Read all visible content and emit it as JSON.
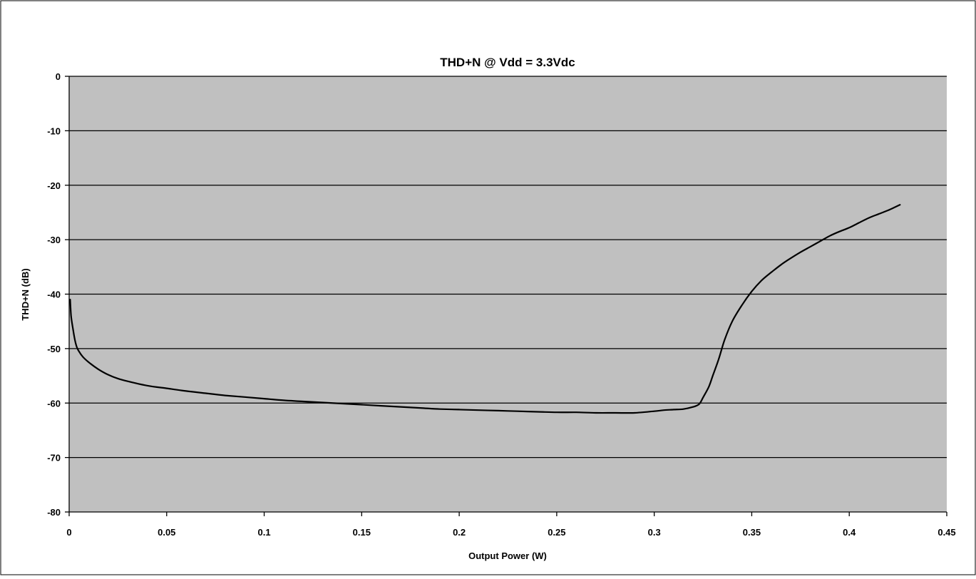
{
  "chart_data": {
    "type": "line",
    "title": "THD+N @ Vdd = 3.3Vdc",
    "xlabel": "Output Power (W)",
    "ylabel": "THD+N (dB)",
    "xlim": [
      0,
      0.45
    ],
    "ylim": [
      -80,
      0
    ],
    "xticks": [
      0,
      0.05,
      0.1,
      0.15,
      0.2,
      0.25,
      0.3,
      0.35,
      0.4,
      0.45
    ],
    "xtick_labels": [
      "0",
      "0.05",
      "0.1",
      "0.15",
      "0.2",
      "0.25",
      "0.3",
      "0.35",
      "0.4",
      "0.45"
    ],
    "yticks": [
      0,
      -10,
      -20,
      -30,
      -40,
      -50,
      -60,
      -70,
      -80
    ],
    "ytick_labels": [
      "0",
      "-10",
      "-20",
      "-30",
      "-40",
      "-50",
      "-60",
      "-70",
      "-80"
    ],
    "grid": "horizontal",
    "legend": "none",
    "colors": {
      "plot_background": "#c0c0c0",
      "line": "#000000",
      "gridline": "#000000",
      "frame_border": "#000000"
    },
    "series": [
      {
        "x": [
          0.0005,
          0.001,
          0.002,
          0.003,
          0.004,
          0.005,
          0.007,
          0.01,
          0.015,
          0.02,
          0.025,
          0.03,
          0.04,
          0.05,
          0.06,
          0.07,
          0.08,
          0.09,
          0.1,
          0.11,
          0.12,
          0.13,
          0.14,
          0.15,
          0.16,
          0.17,
          0.18,
          0.19,
          0.2,
          0.21,
          0.22,
          0.23,
          0.24,
          0.25,
          0.26,
          0.27,
          0.28,
          0.29,
          0.3,
          0.305,
          0.31,
          0.315,
          0.32,
          0.323,
          0.325,
          0.328,
          0.33,
          0.333,
          0.336,
          0.34,
          0.345,
          0.35,
          0.355,
          0.36,
          0.365,
          0.37,
          0.375,
          0.38,
          0.385,
          0.39,
          0.395,
          0.4,
          0.405,
          0.41,
          0.415,
          0.42,
          0.426
        ],
        "y": [
          -41,
          -44,
          -46.5,
          -48.5,
          -49.8,
          -50.5,
          -51.5,
          -52.5,
          -53.8,
          -54.8,
          -55.5,
          -56,
          -56.8,
          -57.3,
          -57.8,
          -58.2,
          -58.6,
          -58.9,
          -59.2,
          -59.5,
          -59.7,
          -59.9,
          -60.1,
          -60.3,
          -60.5,
          -60.7,
          -60.9,
          -61.1,
          -61.2,
          -61.3,
          -61.4,
          -61.5,
          -61.6,
          -61.7,
          -61.7,
          -61.8,
          -61.8,
          -61.8,
          -61.5,
          -61.3,
          -61.2,
          -61.1,
          -60.7,
          -60.2,
          -59,
          -57,
          -55,
          -52,
          -48.5,
          -45,
          -42,
          -39.5,
          -37.5,
          -36,
          -34.6,
          -33.4,
          -32.3,
          -31.3,
          -30.3,
          -29.3,
          -28.5,
          -27.8,
          -26.9,
          -26,
          -25.3,
          -24.6,
          -23.6
        ]
      }
    ]
  }
}
